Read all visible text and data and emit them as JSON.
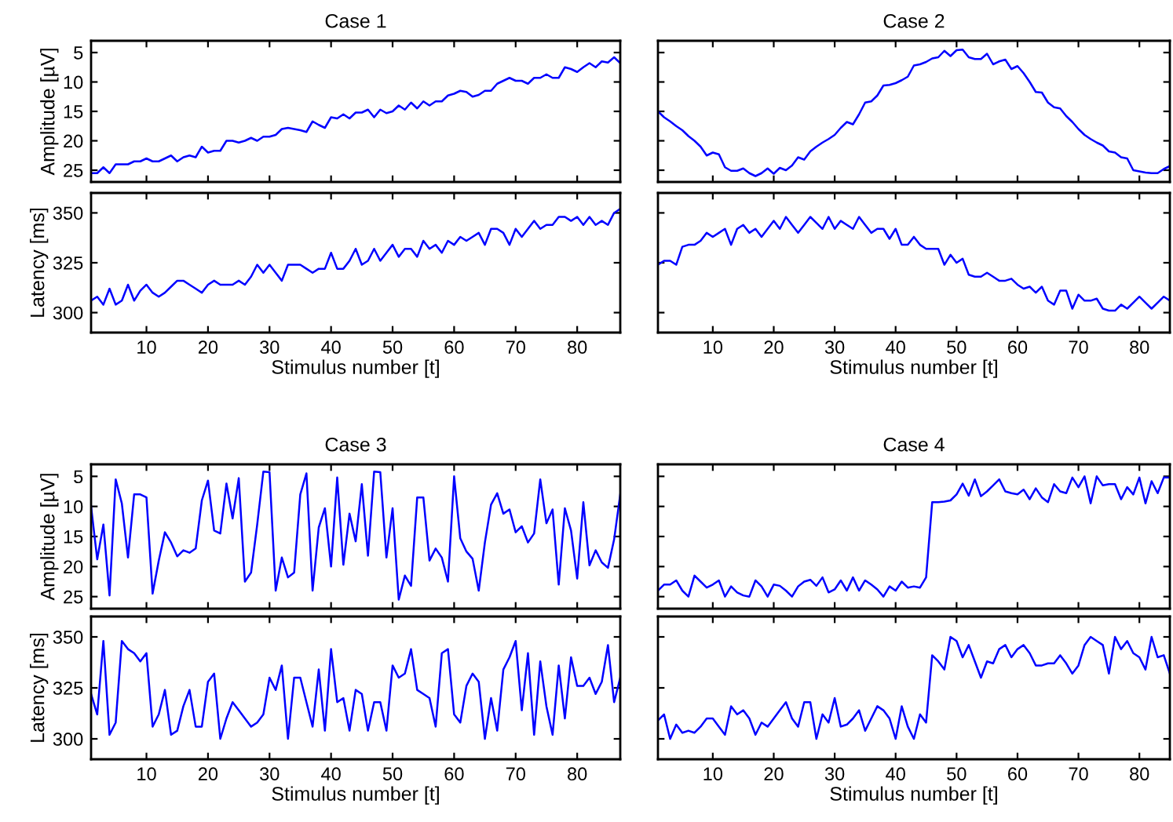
{
  "chart_data": [
    {
      "type": "line",
      "title": "Case 1",
      "ylabel": "Amplitude [µV]",
      "xlim": [
        1,
        87
      ],
      "xticks": [
        10,
        20,
        30,
        40,
        50,
        60,
        70,
        80
      ],
      "ylim": [
        27,
        3
      ],
      "yticks": [
        5,
        10,
        15,
        20,
        25
      ],
      "tick_labels": "y",
      "grid": false,
      "legend": false,
      "series": [
        {
          "color": "#0000ff",
          "x": [
            1,
            2,
            3,
            4,
            5,
            6,
            7,
            8,
            9,
            10,
            11,
            12,
            13,
            14,
            15,
            16,
            17,
            18,
            19,
            20,
            21,
            22,
            23,
            24,
            25,
            26,
            27,
            28,
            29,
            30,
            31,
            32,
            33,
            34,
            35,
            36,
            37,
            38,
            39,
            40,
            41,
            42,
            43,
            44,
            45,
            46,
            47,
            48,
            49,
            50,
            51,
            52,
            53,
            54,
            55,
            56,
            57,
            58,
            59,
            60,
            61,
            62,
            63,
            64,
            65,
            66,
            67,
            68,
            69,
            70,
            71,
            72,
            73,
            74,
            75,
            76,
            77,
            78,
            79,
            80,
            81,
            82,
            83,
            84,
            85,
            86,
            87
          ],
          "values": [
            25.5,
            25.5,
            24.5,
            25.5,
            24,
            24,
            24,
            23.5,
            23.5,
            23,
            23.5,
            23.5,
            23,
            22.5,
            23.5,
            22.8,
            22.5,
            22.8,
            21,
            22,
            21.7,
            21.7,
            20,
            20,
            20.3,
            20,
            19.5,
            20,
            19.3,
            19.3,
            19,
            18,
            17.8,
            18,
            18.2,
            18.5,
            16.7,
            17.3,
            17.8,
            16,
            16.2,
            15.5,
            16.2,
            15.2,
            15.2,
            14.7,
            16,
            14.7,
            15.3,
            15,
            14,
            14.7,
            13.5,
            14.5,
            13.3,
            14,
            13.3,
            13.3,
            12.3,
            12,
            11.5,
            11.7,
            12.5,
            12.2,
            11.5,
            11.5,
            10.3,
            9.8,
            9.3,
            9.8,
            9.8,
            10.3,
            9.3,
            9.3,
            8.7,
            9.3,
            9.3,
            7.5,
            7.8,
            8.3,
            7.5,
            6.8,
            7.5,
            6.5,
            6.7,
            5.8,
            6.8
          ]
        }
      ]
    },
    {
      "type": "line",
      "ylabel": "Latency [ms]",
      "xlabel": "Stimulus number [t]",
      "xlim": [
        1,
        87
      ],
      "xticks": [
        10,
        20,
        30,
        40,
        50,
        60,
        70,
        80
      ],
      "ylim": [
        290,
        360
      ],
      "yticks": [
        300,
        325,
        350
      ],
      "grid": false,
      "legend": false,
      "series": [
        {
          "color": "#0000ff",
          "x": [
            1,
            2,
            3,
            4,
            5,
            6,
            7,
            8,
            9,
            10,
            11,
            12,
            13,
            14,
            15,
            16,
            17,
            18,
            19,
            20,
            21,
            22,
            23,
            24,
            25,
            26,
            27,
            28,
            29,
            30,
            31,
            32,
            33,
            34,
            35,
            36,
            37,
            38,
            39,
            40,
            41,
            42,
            43,
            44,
            45,
            46,
            47,
            48,
            49,
            50,
            51,
            52,
            53,
            54,
            55,
            56,
            57,
            58,
            59,
            60,
            61,
            62,
            63,
            64,
            65,
            66,
            67,
            68,
            69,
            70,
            71,
            72,
            73,
            74,
            75,
            76,
            77,
            78,
            79,
            80,
            81,
            82,
            83,
            84,
            85,
            86,
            87
          ],
          "values": [
            306,
            308,
            304,
            312,
            304,
            306,
            314,
            306,
            311,
            314,
            310,
            308,
            310,
            313,
            316,
            316,
            314,
            312,
            310,
            314,
            316,
            314,
            314,
            314,
            316,
            314,
            318,
            324,
            320,
            324,
            320,
            316,
            324,
            324,
            324,
            322,
            320,
            322,
            322,
            330,
            322,
            322,
            326,
            332,
            324,
            326,
            332,
            326,
            330,
            334,
            328,
            332,
            332,
            328,
            336,
            332,
            334,
            330,
            336,
            334,
            338,
            336,
            338,
            340,
            334,
            342,
            342,
            340,
            334,
            342,
            338,
            342,
            346,
            342,
            344,
            344,
            348,
            348,
            346,
            348,
            344,
            348,
            344,
            346,
            344,
            350,
            352
          ]
        }
      ]
    },
    {
      "type": "line",
      "title": "Case 2",
      "xlim": [
        1,
        85
      ],
      "xticks": [
        10,
        20,
        30,
        40,
        50,
        60,
        70,
        80
      ],
      "ylim": [
        27,
        3
      ],
      "yticks": [
        5,
        10,
        15,
        20,
        25
      ],
      "tick_labels": false,
      "grid": false,
      "legend": false,
      "series": [
        {
          "color": "#0000ff",
          "x": [
            1,
            2,
            3,
            4,
            5,
            6,
            7,
            8,
            9,
            10,
            11,
            12,
            13,
            14,
            15,
            16,
            17,
            18,
            19,
            20,
            21,
            22,
            23,
            24,
            25,
            26,
            27,
            28,
            29,
            30,
            31,
            32,
            33,
            34,
            35,
            36,
            37,
            38,
            39,
            40,
            41,
            42,
            43,
            44,
            45,
            46,
            47,
            48,
            49,
            50,
            51,
            52,
            53,
            54,
            55,
            56,
            57,
            58,
            59,
            60,
            61,
            62,
            63,
            64,
            65,
            66,
            67,
            68,
            69,
            70,
            71,
            72,
            73,
            74,
            75,
            76,
            77,
            78,
            79,
            80,
            81,
            82,
            83,
            84,
            85
          ],
          "values": [
            15,
            16,
            16.7,
            17.5,
            18.2,
            19.2,
            20,
            21,
            22.5,
            22,
            22.3,
            24.5,
            25.1,
            25.1,
            24.7,
            25.5,
            26,
            25.5,
            24.7,
            25.6,
            24.6,
            25,
            24.2,
            22.8,
            23.2,
            21.8,
            21,
            20.3,
            19.7,
            19,
            17.8,
            16.8,
            17.2,
            15.5,
            13.5,
            13.3,
            12.3,
            10.6,
            10.5,
            10.2,
            9.7,
            9.1,
            7.2,
            7,
            6.6,
            6,
            5.8,
            4.7,
            5.6,
            4.6,
            4.5,
            5.8,
            6.1,
            6.1,
            5.2,
            7,
            6.5,
            6.2,
            7.8,
            7.3,
            8.5,
            10,
            11.7,
            11.8,
            13.5,
            14.3,
            14.5,
            15.8,
            16.8,
            18,
            19,
            19.7,
            20.3,
            20.8,
            21.8,
            22,
            22.8,
            23,
            25,
            25.2,
            25.4,
            25.5,
            25.5,
            24.8,
            24.3
          ]
        }
      ]
    },
    {
      "type": "line",
      "xlabel": "Stimulus number [t]",
      "xlim": [
        1,
        85
      ],
      "xticks": [
        10,
        20,
        30,
        40,
        50,
        60,
        70,
        80
      ],
      "ylim": [
        290,
        360
      ],
      "yticks": [
        300,
        325,
        350
      ],
      "tick_labels": "x",
      "grid": false,
      "legend": false,
      "series": [
        {
          "color": "#0000ff",
          "x": [
            1,
            2,
            3,
            4,
            5,
            6,
            7,
            8,
            9,
            10,
            11,
            12,
            13,
            14,
            15,
            16,
            17,
            18,
            19,
            20,
            21,
            22,
            23,
            24,
            25,
            26,
            27,
            28,
            29,
            30,
            31,
            32,
            33,
            34,
            35,
            36,
            37,
            38,
            39,
            40,
            41,
            42,
            43,
            44,
            45,
            46,
            47,
            48,
            49,
            50,
            51,
            52,
            53,
            54,
            55,
            56,
            57,
            58,
            59,
            60,
            61,
            62,
            63,
            64,
            65,
            66,
            67,
            68,
            69,
            70,
            71,
            72,
            73,
            74,
            75,
            76,
            77,
            78,
            79,
            80,
            81,
            82,
            83,
            84,
            85
          ],
          "values": [
            324,
            326,
            326,
            324,
            333,
            334,
            334,
            336,
            340,
            338,
            340,
            342,
            334,
            342,
            344,
            340,
            342,
            338,
            342,
            346,
            342,
            348,
            344,
            340,
            344,
            348,
            345,
            342,
            348,
            342,
            346,
            344,
            342,
            348,
            344,
            340,
            342,
            342,
            337,
            342,
            334,
            334,
            338,
            334,
            332,
            332,
            332,
            324,
            329,
            325,
            327,
            319,
            318,
            318,
            320,
            318,
            316,
            316,
            317,
            314,
            312,
            313,
            310,
            313,
            306,
            304,
            311,
            311,
            302,
            309,
            306,
            306,
            307,
            302,
            301,
            301,
            304,
            302,
            305,
            308,
            305,
            302,
            305,
            308,
            306
          ]
        }
      ]
    },
    {
      "type": "line",
      "title": "Case 3",
      "ylabel": "Amplitude [µV]",
      "xlim": [
        1,
        87
      ],
      "xticks": [
        10,
        20,
        30,
        40,
        50,
        60,
        70,
        80
      ],
      "ylim": [
        27,
        3
      ],
      "yticks": [
        5,
        10,
        15,
        20,
        25
      ],
      "tick_labels": "y",
      "grid": false,
      "legend": false,
      "series": [
        {
          "color": "#0000ff",
          "x": [
            1,
            2,
            3,
            4,
            5,
            6,
            7,
            8,
            9,
            10,
            11,
            12,
            13,
            14,
            15,
            16,
            17,
            18,
            19,
            20,
            21,
            22,
            23,
            24,
            25,
            26,
            27,
            28,
            29,
            30,
            31,
            32,
            33,
            34,
            35,
            36,
            37,
            38,
            39,
            40,
            41,
            42,
            43,
            44,
            45,
            46,
            47,
            48,
            49,
            50,
            51,
            52,
            53,
            54,
            55,
            56,
            57,
            58,
            59,
            60,
            61,
            62,
            63,
            64,
            65,
            66,
            67,
            68,
            69,
            70,
            71,
            72,
            73,
            74,
            75,
            76,
            77,
            78,
            79,
            80,
            81,
            82,
            83,
            84,
            85,
            86,
            87
          ],
          "values": [
            10,
            18.8,
            13,
            24.8,
            5.5,
            9.5,
            18.5,
            8,
            8,
            8.5,
            24.5,
            19,
            14.3,
            16,
            18.3,
            17.3,
            17.7,
            17,
            9,
            5.7,
            14,
            14.5,
            6.2,
            12,
            5.3,
            22.5,
            21,
            13,
            4.2,
            4.3,
            24,
            18.5,
            21.8,
            21,
            8,
            4.5,
            24,
            13.5,
            10.3,
            20,
            5.2,
            19.7,
            11.2,
            15.8,
            6.3,
            18.2,
            4.2,
            4.3,
            18.5,
            10.3,
            25.5,
            21.5,
            23.2,
            8.5,
            8.5,
            19,
            17,
            18.5,
            22.5,
            5,
            15.3,
            17.5,
            18.7,
            24,
            16,
            9.7,
            7.8,
            11.2,
            10.5,
            14.3,
            13.3,
            16,
            14.5,
            5.5,
            12.8,
            10.5,
            23,
            10.3,
            14,
            22,
            9.3,
            19.8,
            17.3,
            19.3,
            20.2,
            15.5,
            8
          ]
        }
      ]
    },
    {
      "type": "line",
      "ylabel": "Latency [ms]",
      "xlabel": "Stimulus number [t]",
      "xlim": [
        1,
        87
      ],
      "xticks": [
        10,
        20,
        30,
        40,
        50,
        60,
        70,
        80
      ],
      "ylim": [
        290,
        360
      ],
      "yticks": [
        300,
        325,
        350
      ],
      "grid": false,
      "legend": false,
      "series": [
        {
          "color": "#0000ff",
          "x": [
            1,
            2,
            3,
            4,
            5,
            6,
            7,
            8,
            9,
            10,
            11,
            12,
            13,
            14,
            15,
            16,
            17,
            18,
            19,
            20,
            21,
            22,
            23,
            24,
            25,
            26,
            27,
            28,
            29,
            30,
            31,
            32,
            33,
            34,
            35,
            36,
            37,
            38,
            39,
            40,
            41,
            42,
            43,
            44,
            45,
            46,
            47,
            48,
            49,
            50,
            51,
            52,
            53,
            54,
            55,
            56,
            57,
            58,
            59,
            60,
            61,
            62,
            63,
            64,
            65,
            66,
            67,
            68,
            69,
            70,
            71,
            72,
            73,
            74,
            75,
            76,
            77,
            78,
            79,
            80,
            81,
            82,
            83,
            84,
            85,
            86,
            87
          ],
          "values": [
            322,
            312,
            348,
            302,
            308,
            348,
            344,
            342,
            338,
            342,
            306,
            312,
            324,
            302,
            304,
            316,
            324,
            306,
            306,
            328,
            332,
            300,
            310,
            318,
            314,
            310,
            306,
            308,
            312,
            330,
            324,
            336,
            300,
            330,
            330,
            318,
            306,
            334,
            304,
            344,
            318,
            320,
            304,
            324,
            322,
            304,
            318,
            318,
            304,
            336,
            330,
            332,
            344,
            324,
            322,
            320,
            306,
            342,
            344,
            312,
            308,
            326,
            332,
            328,
            300,
            320,
            304,
            334,
            340,
            348,
            314,
            342,
            302,
            338,
            316,
            302,
            336,
            310,
            340,
            326,
            326,
            330,
            322,
            328,
            346,
            318,
            330
          ]
        }
      ]
    },
    {
      "type": "line",
      "title": "Case 4",
      "xlim": [
        1,
        85
      ],
      "xticks": [
        10,
        20,
        30,
        40,
        50,
        60,
        70,
        80
      ],
      "ylim": [
        27,
        3
      ],
      "yticks": [
        5,
        10,
        15,
        20,
        25
      ],
      "tick_labels": false,
      "grid": false,
      "legend": false,
      "series": [
        {
          "color": "#0000ff",
          "x": [
            1,
            2,
            3,
            4,
            5,
            6,
            7,
            8,
            9,
            10,
            11,
            12,
            13,
            14,
            15,
            16,
            17,
            18,
            19,
            20,
            21,
            22,
            23,
            24,
            25,
            26,
            27,
            28,
            29,
            30,
            31,
            32,
            33,
            34,
            35,
            36,
            37,
            38,
            39,
            40,
            41,
            42,
            43,
            44,
            45,
            46,
            47,
            48,
            49,
            50,
            51,
            52,
            53,
            54,
            55,
            56,
            57,
            58,
            59,
            60,
            61,
            62,
            63,
            64,
            65,
            66,
            67,
            68,
            69,
            70,
            71,
            72,
            73,
            74,
            75,
            76,
            77,
            78,
            79,
            80,
            81,
            82,
            83,
            84,
            85
          ],
          "values": [
            24,
            23,
            23,
            22.3,
            24,
            25,
            21.5,
            22.5,
            23.5,
            23,
            22.3,
            25,
            23.3,
            24.3,
            24.8,
            25,
            22.3,
            23.3,
            25,
            23,
            23.2,
            24,
            25,
            23.3,
            22.5,
            22.2,
            23.2,
            21.8,
            24.3,
            23.8,
            22.3,
            24,
            21.8,
            24,
            22.3,
            23,
            23.8,
            25,
            23.3,
            24,
            22.5,
            23.5,
            23.3,
            23.5,
            21.8,
            9.3,
            9.3,
            9.2,
            9,
            8,
            6.2,
            8.2,
            5.5,
            8.3,
            7.5,
            6.5,
            5.5,
            7.5,
            7.8,
            8,
            7.2,
            8.8,
            7,
            8.5,
            9.3,
            6.3,
            7.5,
            7.8,
            5.2,
            6.8,
            5,
            9.5,
            5,
            6.5,
            6.3,
            6.3,
            8.8,
            6.8,
            8,
            5.2,
            9.5,
            5.8,
            7.8,
            5.2,
            5.2
          ]
        }
      ]
    },
    {
      "type": "line",
      "xlabel": "Stimulus number [t]",
      "xlim": [
        1,
        85
      ],
      "xticks": [
        10,
        20,
        30,
        40,
        50,
        60,
        70,
        80
      ],
      "ylim": [
        290,
        360
      ],
      "yticks": [
        300,
        325,
        350
      ],
      "tick_labels": "x",
      "grid": false,
      "legend": false,
      "series": [
        {
          "color": "#0000ff",
          "x": [
            1,
            2,
            3,
            4,
            5,
            6,
            7,
            8,
            9,
            10,
            11,
            12,
            13,
            14,
            15,
            16,
            17,
            18,
            19,
            20,
            21,
            22,
            23,
            24,
            25,
            26,
            27,
            28,
            29,
            30,
            31,
            32,
            33,
            34,
            35,
            36,
            37,
            38,
            39,
            40,
            41,
            42,
            43,
            44,
            45,
            46,
            47,
            48,
            49,
            50,
            51,
            52,
            53,
            54,
            55,
            56,
            57,
            58,
            59,
            60,
            61,
            62,
            63,
            64,
            65,
            66,
            67,
            68,
            69,
            70,
            71,
            72,
            73,
            74,
            75,
            76,
            77,
            78,
            79,
            80,
            81,
            82,
            83,
            84,
            85
          ],
          "values": [
            309,
            312,
            300,
            307,
            303,
            304,
            303,
            306,
            310,
            310,
            306,
            302,
            316,
            312,
            314,
            310,
            302,
            308,
            306,
            310,
            314,
            318,
            310,
            306,
            318,
            318,
            300,
            312,
            308,
            320,
            306,
            307,
            310,
            314,
            304,
            310,
            316,
            314,
            310,
            300,
            316,
            306,
            300,
            312,
            308,
            341,
            338,
            334,
            350,
            348,
            340,
            346,
            338,
            330,
            338,
            337,
            344,
            346,
            340,
            344,
            346,
            342,
            336,
            336,
            337,
            337,
            341,
            337,
            332,
            336,
            346,
            350,
            348,
            346,
            332,
            350,
            344,
            348,
            342,
            340,
            334,
            350,
            340,
            341,
            332
          ]
        }
      ]
    }
  ]
}
